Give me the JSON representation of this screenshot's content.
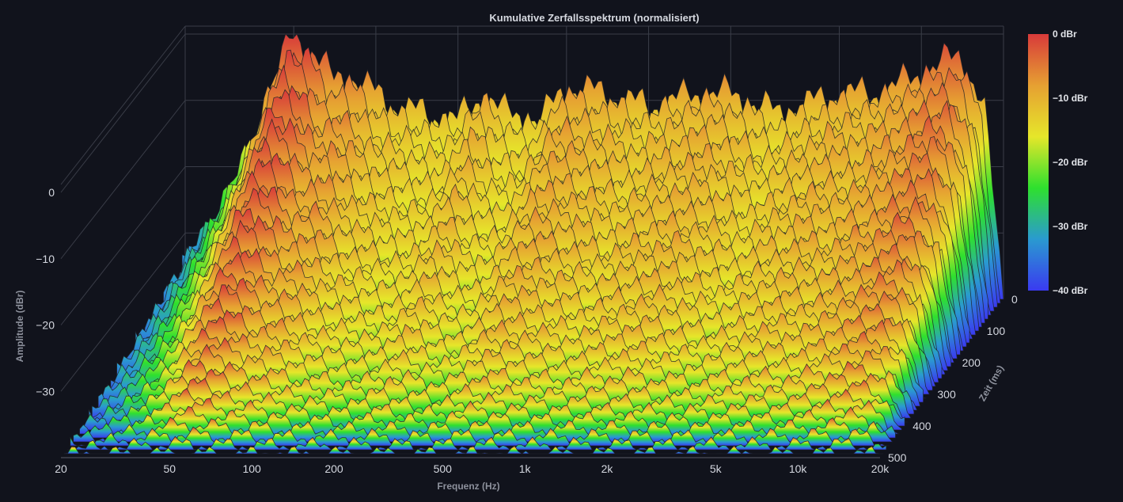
{
  "chart_data": {
    "type": "area",
    "subtype": "3d-waterfall",
    "title": "Kumulative Zerfallsspektrum (normalisiert)",
    "xlabel": "Frequenz (Hz)",
    "ylabel": "Amplitude (dBr)",
    "zlabel": "Zeit (ms)",
    "x_scale": "log",
    "xlim": [
      20,
      20000
    ],
    "x_ticks": [
      {
        "value": 20,
        "label": "20"
      },
      {
        "value": 50,
        "label": "50"
      },
      {
        "value": 100,
        "label": "100"
      },
      {
        "value": 200,
        "label": "200"
      },
      {
        "value": 500,
        "label": "500"
      },
      {
        "value": 1000,
        "label": "1k"
      },
      {
        "value": 2000,
        "label": "2k"
      },
      {
        "value": 5000,
        "label": "5k"
      },
      {
        "value": 10000,
        "label": "10k"
      },
      {
        "value": 20000,
        "label": "20k"
      }
    ],
    "ylim": [
      -40,
      0
    ],
    "y_ticks": [
      {
        "value": 0,
        "label": "0"
      },
      {
        "value": -10,
        "label": "−10"
      },
      {
        "value": -20,
        "label": "−20"
      },
      {
        "value": -30,
        "label": "−30"
      }
    ],
    "zlim": [
      0,
      500
    ],
    "z_ticks": [
      {
        "value": 0,
        "label": "0"
      },
      {
        "value": 100,
        "label": "100"
      },
      {
        "value": 200,
        "label": "200"
      },
      {
        "value": 300,
        "label": "300"
      },
      {
        "value": 400,
        "label": "400"
      },
      {
        "value": 500,
        "label": "500"
      }
    ],
    "colorbar": {
      "range": [
        -40,
        0
      ],
      "ticks": [
        {
          "value": 0,
          "label": "0 dBr"
        },
        {
          "value": -10,
          "label": "−10 dBr"
        },
        {
          "value": -20,
          "label": "−20 dBr"
        },
        {
          "value": -30,
          "label": "−30 dBr"
        },
        {
          "value": -40,
          "label": "−40 dBr"
        }
      ],
      "colors": [
        "#3a3af0",
        "#2a9ad0",
        "#2ee02e",
        "#e6e62a",
        "#e6a032",
        "#d83a3a"
      ]
    },
    "slice_count": 40,
    "slice_step_ms": 12.5,
    "series": [
      {
        "values_front": {
          "x": [
            20,
            25,
            30,
            35,
            40,
            45,
            50,
            60,
            70,
            80,
            100,
            120,
            150,
            200,
            250,
            300,
            400,
            500,
            700,
            1000,
            1500,
            2000,
            3000,
            5000,
            7000,
            10000,
            14000,
            17000,
            20000
          ],
          "y": [
            -35,
            -29,
            -23,
            -17,
            -10,
            -4,
            0,
            -3,
            -7,
            -6,
            -9,
            -11,
            -12,
            -13,
            -9,
            -12,
            -13,
            -8,
            -9,
            -11,
            -9,
            -9,
            -12,
            -9,
            -9,
            -6,
            -3,
            -11,
            -40
          ]
        },
        "decay_lowest_dBr": -40
      }
    ],
    "grid": true,
    "legend": "colorbar-right"
  }
}
